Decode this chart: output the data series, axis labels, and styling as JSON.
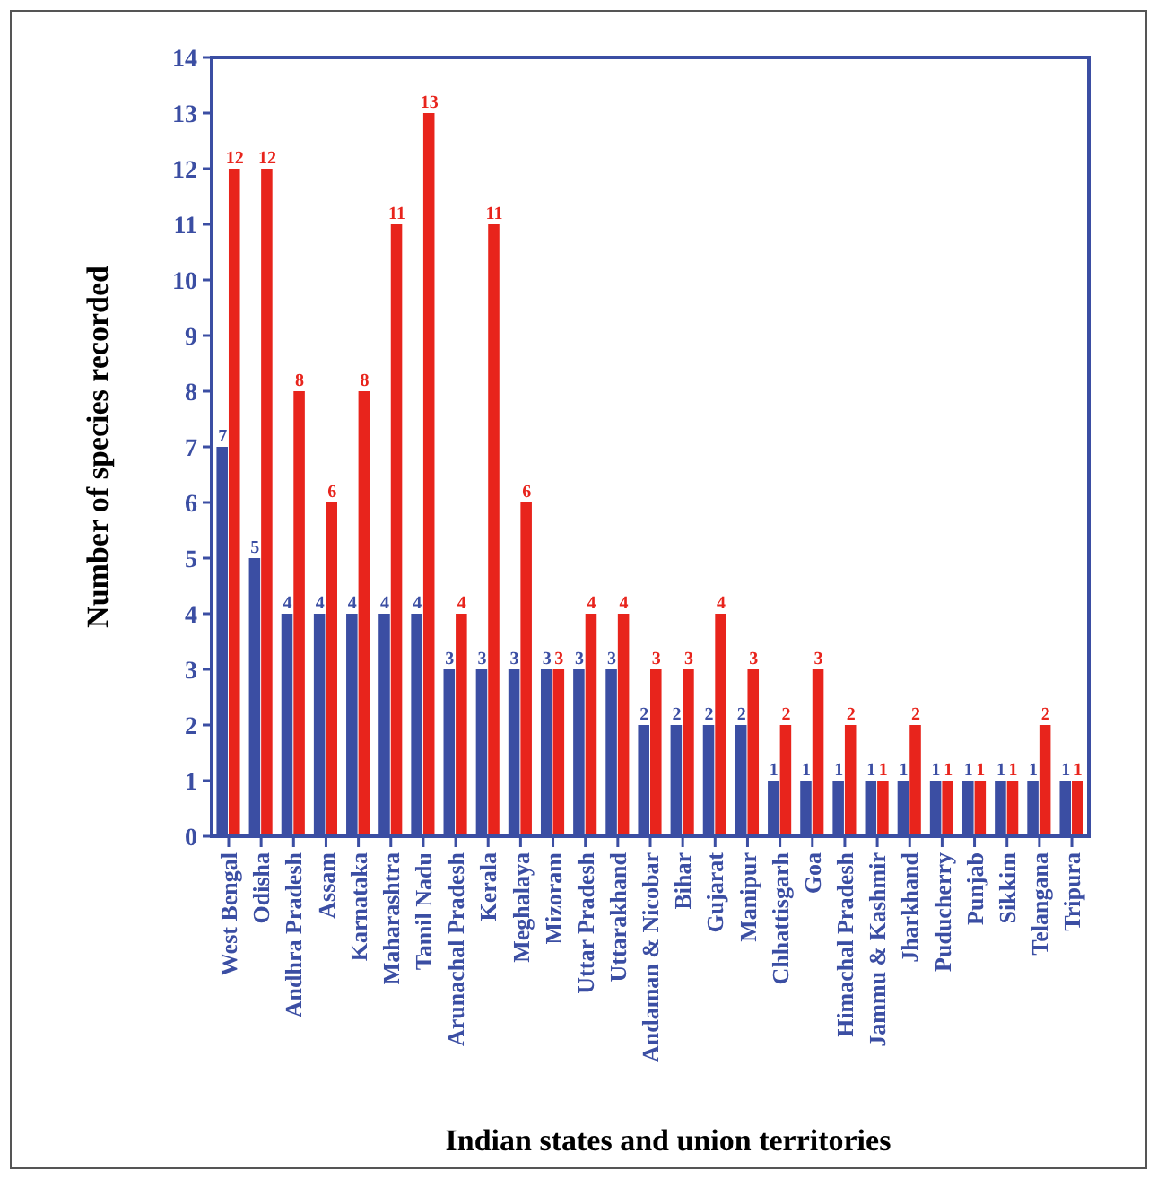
{
  "chart_data": {
    "type": "bar",
    "xlabel": "Indian states and union territories",
    "ylabel": "Number of  species recorded",
    "categories": [
      "West Bengal",
      "Odisha",
      "Andhra Pradesh",
      "Assam",
      "Karnataka",
      "Maharashtra",
      "Tamil Nadu",
      "Arunachal Pradesh",
      "Kerala",
      "Meghalaya",
      "Mizoram",
      "Uttar Pradesh",
      "Uttarakhand",
      "Andaman & Nicobar",
      "Bihar",
      "Gujarat",
      "Manipur",
      "Chhattisgarh",
      "Goa",
      "Himachal Pradesh",
      "Jammu & Kashmir",
      "Jharkhand",
      "Puducherry",
      "Punjab",
      "Sikkim",
      "Telangana",
      "Tripura"
    ],
    "series": [
      {
        "color": "#3b4ea3",
        "values": [
          7,
          5,
          4,
          4,
          4,
          4,
          4,
          3,
          3,
          3,
          3,
          3,
          3,
          2,
          2,
          2,
          2,
          1,
          1,
          1,
          1,
          1,
          1,
          1,
          1,
          1,
          1
        ]
      },
      {
        "color": "#e8241c",
        "values": [
          12,
          12,
          8,
          6,
          8,
          11,
          13,
          4,
          11,
          6,
          3,
          4,
          4,
          3,
          3,
          4,
          3,
          2,
          3,
          2,
          1,
          2,
          1,
          1,
          1,
          2,
          1
        ]
      }
    ],
    "ylim": [
      0,
      14
    ],
    "yticks": [
      0,
      1,
      2,
      3,
      4,
      5,
      6,
      7,
      8,
      9,
      10,
      11,
      12,
      13,
      14
    ],
    "data_labels": true
  }
}
